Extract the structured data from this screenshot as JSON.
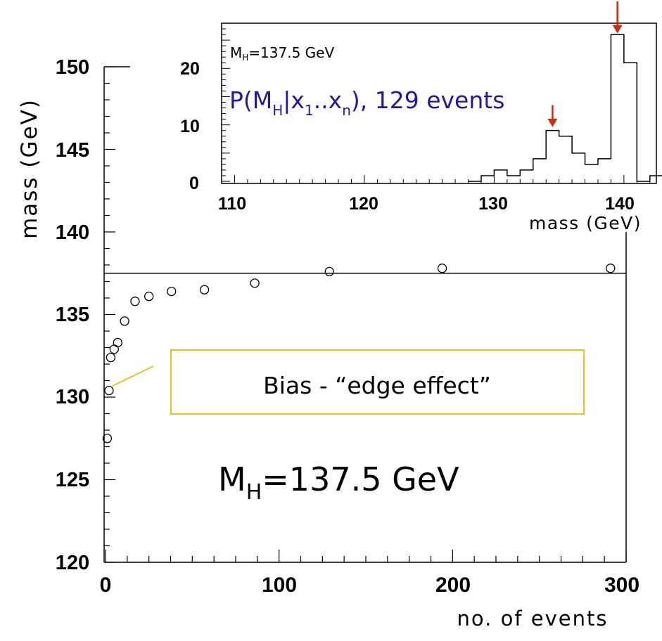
{
  "chart_data": [
    {
      "type": "scatter",
      "xlabel": "no. of events",
      "ylabel": "mass (GeV)",
      "xlim": [
        0,
        300
      ],
      "ylim": [
        120,
        150
      ],
      "x_ticks": [
        "0",
        "100",
        "200",
        "300"
      ],
      "y_ticks": [
        "120",
        "125",
        "130",
        "135",
        "140",
        "145",
        "150"
      ],
      "reference_line": 137.5,
      "points": [
        {
          "x": 1,
          "y": 127.5
        },
        {
          "x": 2,
          "y": 130.4
        },
        {
          "x": 3,
          "y": 132.4
        },
        {
          "x": 5,
          "y": 132.9
        },
        {
          "x": 7,
          "y": 133.3
        },
        {
          "x": 11,
          "y": 134.6
        },
        {
          "x": 17,
          "y": 135.8
        },
        {
          "x": 25,
          "y": 136.1
        },
        {
          "x": 38,
          "y": 136.4
        },
        {
          "x": 57,
          "y": 136.5
        },
        {
          "x": 86,
          "y": 136.9
        },
        {
          "x": 129,
          "y": 137.6
        },
        {
          "x": 194,
          "y": 137.8
        },
        {
          "x": 291,
          "y": 137.8
        }
      ],
      "grid": false,
      "legend": "none"
    },
    {
      "type": "bar",
      "xlabel": "mass (GeV)",
      "xlim": [
        109,
        142.5
      ],
      "ylim": [
        0,
        28
      ],
      "x_ticks": [
        "110",
        "120",
        "130",
        "140"
      ],
      "y_ticks": [
        "0",
        "10",
        "20"
      ],
      "bin_width": 1,
      "bins": [
        {
          "x": 129,
          "v": 1
        },
        {
          "x": 130,
          "v": 2
        },
        {
          "x": 131,
          "v": 1
        },
        {
          "x": 132,
          "v": 2
        },
        {
          "x": 133,
          "v": 4
        },
        {
          "x": 134,
          "v": 9
        },
        {
          "x": 135,
          "v": 8
        },
        {
          "x": 136,
          "v": 5
        },
        {
          "x": 137,
          "v": 3
        },
        {
          "x": 138,
          "v": 4
        },
        {
          "x": 139,
          "v": 26
        },
        {
          "x": 140,
          "v": 21
        },
        {
          "x": 142,
          "v": 1
        }
      ],
      "arrows_at": [
        134.5,
        139.5
      ]
    }
  ],
  "inset": {
    "label_mh": "M",
    "label_mh_sub": "H",
    "label_mh_rest": "=137.5 GeV",
    "prob_text_prefix": "P(M",
    "prob_sub_h": "H",
    "prob_mid": "|x",
    "prob_sub_1": "1",
    "prob_dots": "..x",
    "prob_sub_n": "n",
    "prob_suffix": "), 129 events"
  },
  "annotations": {
    "bias_box": "Bias - “edge effect”",
    "big_label_main": "M",
    "big_label_sub": "H",
    "big_label_rest": "=137.5 GeV"
  },
  "colors": {
    "axis": "#000000",
    "inset_text": "#2a14a0",
    "arrow": "#d02a10",
    "callout_border": "#f0c020"
  }
}
